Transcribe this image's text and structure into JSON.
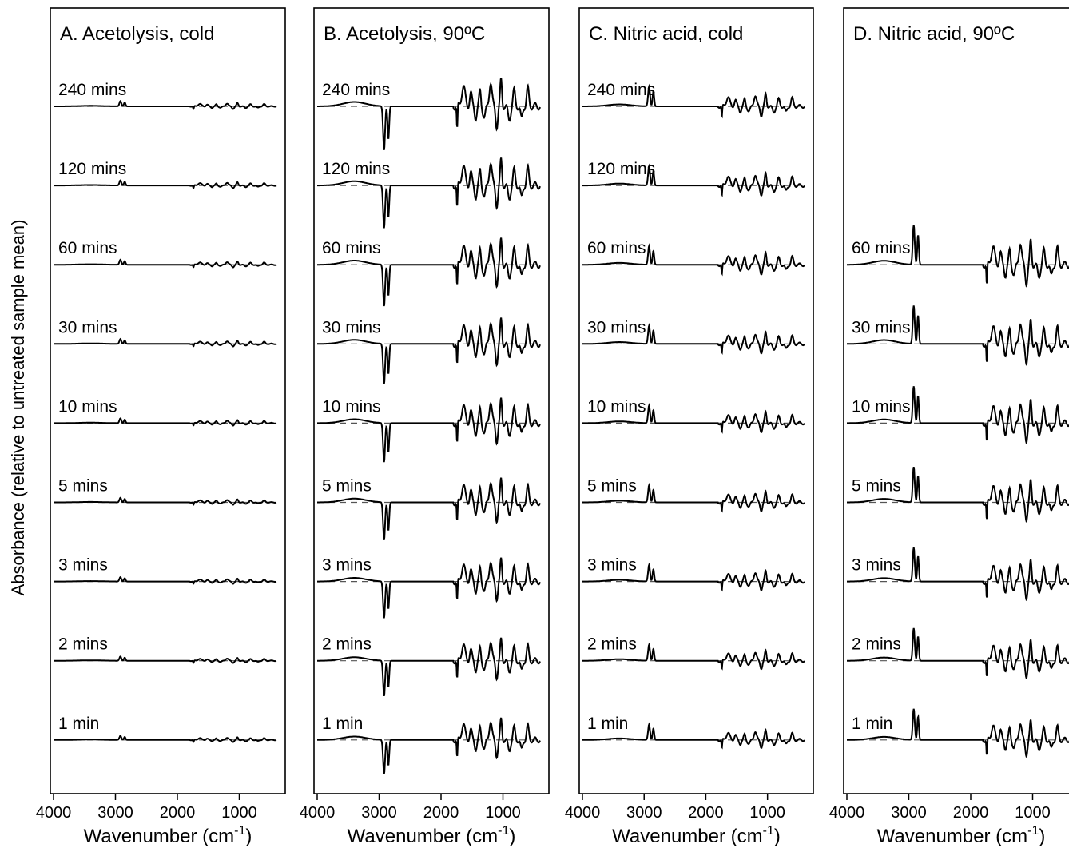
{
  "chart_data": {
    "type": "line",
    "ylabel": "Absorbance (relative to untreated sample mean)",
    "xlabel": "Wavenumber (cm",
    "xlabel_sup": "-1",
    "xlabel_close": ")",
    "xlim": [
      4000,
      400
    ],
    "xticks": [
      4000,
      3000,
      2000,
      1000
    ],
    "xtick_labels": [
      "4000",
      "3000",
      "2000",
      "1000"
    ],
    "baseline": "dashed",
    "panels": [
      {
        "title": "A. Acetolysis, cold",
        "intensity": 0.12,
        "c_sign": 1,
        "traces": [
          {
            "label": "240 mins"
          },
          {
            "label": "120 mins"
          },
          {
            "label": "60 mins"
          },
          {
            "label": "30 mins"
          },
          {
            "label": "10 mins"
          },
          {
            "label": "5 mins"
          },
          {
            "label": "3 mins"
          },
          {
            "label": "2 mins"
          },
          {
            "label": "1 min"
          }
        ]
      },
      {
        "title": "B. Acetolysis, 90ºC",
        "intensity": 1.0,
        "c_sign": -1,
        "traces": [
          {
            "label": "240 mins"
          },
          {
            "label": "120 mins"
          },
          {
            "label": "60 mins"
          },
          {
            "label": "30 mins"
          },
          {
            "label": "10 mins"
          },
          {
            "label": "5 mins"
          },
          {
            "label": "3 mins"
          },
          {
            "label": "2 mins"
          },
          {
            "label": "1 min"
          }
        ]
      },
      {
        "title": "C. Nitric acid, cold",
        "intensity": 0.45,
        "c_sign": 1,
        "traces": [
          {
            "label": "240 mins"
          },
          {
            "label": "120 mins"
          },
          {
            "label": "60 mins"
          },
          {
            "label": "30 mins"
          },
          {
            "label": "10 mins"
          },
          {
            "label": "5 mins"
          },
          {
            "label": "3 mins"
          },
          {
            "label": "2 mins"
          },
          {
            "label": "1 min"
          }
        ]
      },
      {
        "title": "D. Nitric acid, 90ºC",
        "intensity": 0.9,
        "c_sign": 1,
        "traces": [
          {
            "label": "60 mins"
          },
          {
            "label": "30 mins"
          },
          {
            "label": "10 mins"
          },
          {
            "label": "5 mins"
          },
          {
            "label": "3 mins"
          },
          {
            "label": "2 mins"
          },
          {
            "label": "1 min"
          }
        ]
      }
    ]
  }
}
